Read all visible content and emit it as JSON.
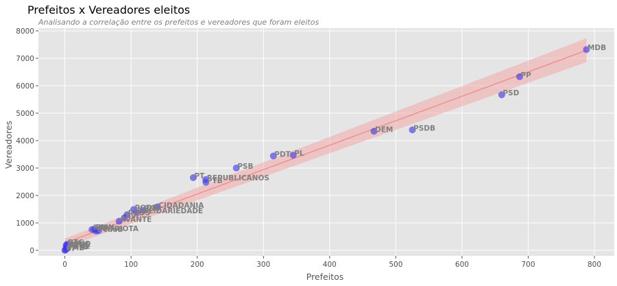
{
  "chart_data": {
    "type": "scatter",
    "title": "Prefeitos x Vereadores eleitos",
    "subtitle": "Analisando a correlação entre os prefeitos e vereadores que foram eleitos",
    "xlabel": "Prefeitos",
    "ylabel": "Vereadores",
    "xlim": [
      -40,
      830
    ],
    "ylim": [
      -200,
      8100
    ],
    "xticks": [
      0,
      100,
      200,
      300,
      400,
      500,
      600,
      700,
      800
    ],
    "yticks": [
      0,
      1000,
      2000,
      3000,
      4000,
      5000,
      6000,
      7000,
      8000
    ],
    "grid": true,
    "points": [
      {
        "label": "MDB",
        "x": 788,
        "y": 7320
      },
      {
        "label": "PP",
        "x": 687,
        "y": 6330
      },
      {
        "label": "PSD",
        "x": 660,
        "y": 5670
      },
      {
        "label": "PSDB",
        "x": 525,
        "y": 4390
      },
      {
        "label": "DEM",
        "x": 467,
        "y": 4340
      },
      {
        "label": "PL",
        "x": 345,
        "y": 3470
      },
      {
        "label": "PDT",
        "x": 315,
        "y": 3440
      },
      {
        "label": "PSB",
        "x": 259,
        "y": 3000
      },
      {
        "label": "PT",
        "x": 194,
        "y": 2650
      },
      {
        "label": "REPUBLICANOS",
        "x": 213,
        "y": 2580
      },
      {
        "label": "PTB",
        "x": 213,
        "y": 2480
      },
      {
        "label": "CIDADANIA",
        "x": 140,
        "y": 1580
      },
      {
        "label": "PODE",
        "x": 104,
        "y": 1490
      },
      {
        "label": "PSC",
        "x": 118,
        "y": 1460
      },
      {
        "label": "SOLIDARIEDADE",
        "x": 108,
        "y": 1380
      },
      {
        "label": "PROS",
        "x": 94,
        "y": 1300
      },
      {
        "label": "PV",
        "x": 90,
        "y": 1190
      },
      {
        "label": "AVANTE",
        "x": 82,
        "y": 1060
      },
      {
        "label": "PMN",
        "x": 45,
        "y": 770
      },
      {
        "label": "PATRIOTA",
        "x": 51,
        "y": 720
      },
      {
        "label": "PSL",
        "x": 41,
        "y": 760
      },
      {
        "label": "PCdoB",
        "x": 47,
        "y": 700
      },
      {
        "label": "PTC",
        "x": 3,
        "y": 220
      },
      {
        "label": "NOVO",
        "x": 2,
        "y": 180
      },
      {
        "label": "REDE",
        "x": 5,
        "y": 150
      },
      {
        "label": "DC",
        "x": 2,
        "y": 110
      },
      {
        "label": "PRTB",
        "x": 3,
        "y": 60
      },
      {
        "label": "PMB",
        "x": 1,
        "y": 20
      },
      {
        "label": "PSOL",
        "x": 4,
        "y": 90
      },
      {
        "label": "UP",
        "x": 0,
        "y": 0
      }
    ],
    "regression": {
      "x": [
        0,
        788
      ],
      "y": [
        270,
        7290
      ],
      "ci_upper": [
        430,
        7730
      ],
      "ci_lower": [
        110,
        6860
      ]
    },
    "colors": {
      "point": "#3b33f0",
      "regression": "#f08080",
      "band": "#f4a9a9",
      "background": "#e5e5e5",
      "grid": "#ffffff"
    }
  }
}
